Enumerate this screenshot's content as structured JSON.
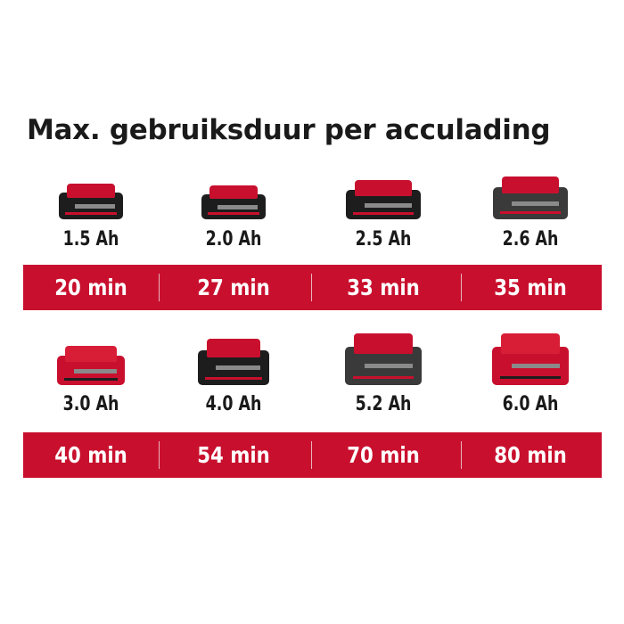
{
  "title": "Max. gebruiksduur per acculading",
  "colors": {
    "bar": "#c8102e",
    "bar_text": "#ffffff",
    "battery_red": "#c8102e",
    "battery_black": "#1d1d1d"
  },
  "rows": [
    {
      "items": [
        {
          "capacity": "1.5 Ah",
          "runtime": "20 min",
          "icon": "battery-pack-small-icon"
        },
        {
          "capacity": "2.0 Ah",
          "runtime": "27 min",
          "icon": "battery-pack-small-icon"
        },
        {
          "capacity": "2.5 Ah",
          "runtime": "33 min",
          "icon": "battery-pack-small-icon"
        },
        {
          "capacity": "2.6 Ah",
          "runtime": "35 min",
          "icon": "battery-pack-small-icon"
        }
      ]
    },
    {
      "items": [
        {
          "capacity": "3.0 Ah",
          "runtime": "40 min",
          "icon": "battery-pack-medium-icon"
        },
        {
          "capacity": "4.0 Ah",
          "runtime": "54 min",
          "icon": "battery-pack-medium-icon"
        },
        {
          "capacity": "5.2 Ah",
          "runtime": "70 min",
          "icon": "battery-pack-large-icon"
        },
        {
          "capacity": "6.0 Ah",
          "runtime": "80 min",
          "icon": "battery-pack-large-icon"
        }
      ]
    }
  ]
}
